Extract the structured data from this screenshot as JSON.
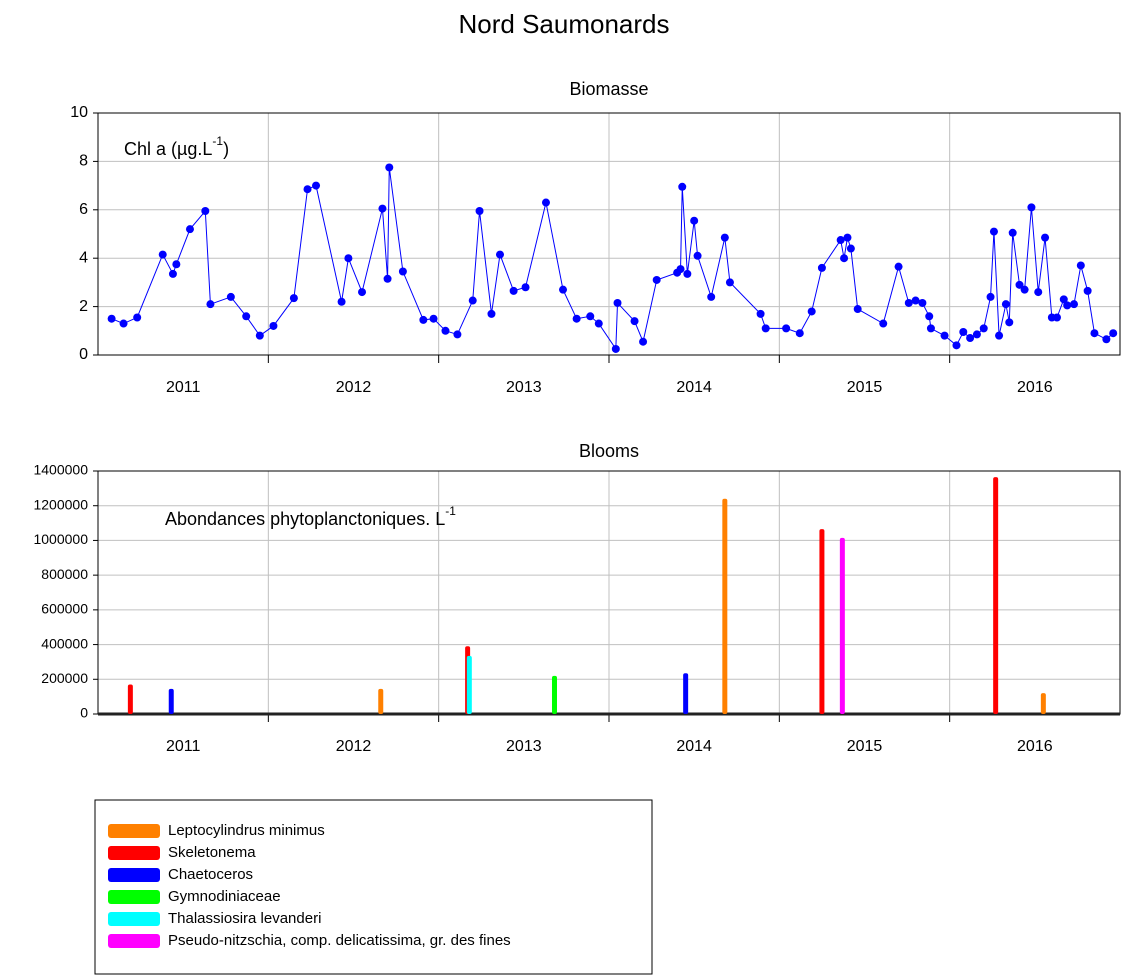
{
  "title": "Nord Saumonards",
  "chart_data": [
    {
      "type": "line",
      "title": "Biomasse",
      "annotation": {
        "text": "Chl a (µg.L",
        "sup": "-1",
        "after": ")"
      },
      "color": "#0000ff",
      "x": [
        2011.08,
        2011.15,
        2011.23,
        2011.38,
        2011.44,
        2011.46,
        2011.54,
        2011.63,
        2011.66,
        2011.78,
        2011.87,
        2011.95,
        2012.03,
        2012.15,
        2012.23,
        2012.28,
        2012.43,
        2012.47,
        2012.55,
        2012.67,
        2012.7,
        2012.71,
        2012.79,
        2012.91,
        2012.97,
        2013.04,
        2013.11,
        2013.2,
        2013.24,
        2013.31,
        2013.36,
        2013.44,
        2013.51,
        2013.63,
        2013.73,
        2013.81,
        2013.89,
        2013.94,
        2014.04,
        2014.05,
        2014.15,
        2014.2,
        2014.28,
        2014.4,
        2014.42,
        2014.43,
        2014.46,
        2014.5,
        2014.52,
        2014.6,
        2014.68,
        2014.71,
        2014.89,
        2014.92,
        2015.04,
        2015.12,
        2015.19,
        2015.25,
        2015.36,
        2015.38,
        2015.4,
        2015.42,
        2015.46,
        2015.61,
        2015.7,
        2015.76,
        2015.8,
        2015.84,
        2015.88,
        2015.89,
        2015.97,
        2016.04,
        2016.08,
        2016.12,
        2016.16,
        2016.2,
        2016.24,
        2016.26,
        2016.29,
        2016.33,
        2016.35,
        2016.37,
        2016.41,
        2016.44,
        2016.48,
        2016.52,
        2016.56,
        2016.6,
        2016.63,
        2016.67,
        2016.69,
        2016.73,
        2016.77,
        2016.81,
        2016.85,
        2016.92,
        2016.96
      ],
      "values": [
        1.5,
        1.3,
        1.55,
        4.15,
        3.35,
        3.75,
        5.2,
        5.95,
        2.1,
        2.4,
        1.6,
        0.8,
        1.2,
        2.35,
        6.85,
        7.0,
        2.2,
        4.0,
        2.6,
        6.05,
        3.15,
        7.75,
        3.45,
        1.45,
        1.5,
        1.0,
        0.85,
        2.25,
        5.95,
        1.7,
        4.15,
        2.65,
        2.8,
        6.3,
        2.7,
        1.5,
        1.6,
        1.3,
        0.25,
        2.15,
        1.4,
        0.55,
        3.1,
        3.4,
        3.55,
        6.95,
        3.35,
        5.55,
        4.1,
        2.4,
        4.85,
        3.0,
        1.7,
        1.1,
        1.1,
        0.9,
        1.8,
        3.6,
        4.75,
        4.0,
        4.85,
        4.4,
        1.9,
        1.3,
        3.65,
        2.15,
        2.25,
        2.15,
        1.6,
        1.1,
        0.8,
        0.4,
        0.95,
        0.7,
        0.85,
        1.1,
        2.4,
        5.1,
        0.8,
        2.1,
        1.35,
        5.05,
        2.9,
        2.7,
        6.1,
        2.6,
        4.85,
        1.55,
        1.55,
        2.3,
        2.05,
        2.1,
        3.7,
        2.65,
        0.9,
        0.65,
        0.9
      ],
      "xlim": [
        2011,
        2017
      ],
      "xticks": [
        {
          "value": 2011.5,
          "label": "2011"
        },
        {
          "value": 2012.5,
          "label": "2012"
        },
        {
          "value": 2013.5,
          "label": "2013"
        },
        {
          "value": 2014.5,
          "label": "2014"
        },
        {
          "value": 2015.5,
          "label": "2015"
        },
        {
          "value": 2016.5,
          "label": "2016"
        }
      ],
      "xgrid": [
        2012,
        2013,
        2014,
        2015,
        2016
      ],
      "ylim": [
        0,
        10
      ],
      "yticks": [
        0,
        2,
        4,
        6,
        8,
        10
      ],
      "grid": true
    },
    {
      "type": "bar",
      "title": "Blooms",
      "annotation": {
        "text": "Abondances phytoplanctoniques. L",
        "sup": "-1",
        "after": ""
      },
      "series": [
        {
          "name": "Leptocylindrus minimus",
          "color": "#ff8000",
          "x": [
            2012.66,
            2014.68,
            2016.55
          ],
          "values": [
            145000,
            1240000,
            120000
          ]
        },
        {
          "name": "Skeletonema",
          "color": "#ff0000",
          "x": [
            2011.19,
            2013.17,
            2015.25,
            2016.27
          ],
          "values": [
            170000,
            390000,
            1065000,
            1365000
          ]
        },
        {
          "name": "Chaetoceros",
          "color": "#0000ff",
          "x": [
            2011.43,
            2014.45
          ],
          "values": [
            145000,
            235000
          ]
        },
        {
          "name": "Gymnodiniaceae",
          "color": "#00ff00",
          "x": [
            2013.68
          ],
          "values": [
            220000
          ]
        },
        {
          "name": "Thalassiosira levanderi",
          "color": "#00ffff",
          "x": [
            2013.18
          ],
          "values": [
            335000
          ]
        },
        {
          "name": "Pseudo-nitzschia, comp. delicatissima, gr. des fines",
          "color": "#ff00ff",
          "x": [
            2015.37
          ],
          "values": [
            1015000
          ]
        }
      ],
      "xlim": [
        2011,
        2017
      ],
      "xticks": [
        {
          "value": 2011.5,
          "label": "2011"
        },
        {
          "value": 2012.5,
          "label": "2012"
        },
        {
          "value": 2013.5,
          "label": "2013"
        },
        {
          "value": 2014.5,
          "label": "2014"
        },
        {
          "value": 2015.5,
          "label": "2015"
        },
        {
          "value": 2016.5,
          "label": "2016"
        }
      ],
      "xgrid": [
        2012,
        2013,
        2014,
        2015,
        2016
      ],
      "ylim": [
        0,
        1400000
      ],
      "yticks": [
        0,
        200000,
        400000,
        600000,
        800000,
        1000000,
        1200000,
        1400000
      ],
      "grid": true
    }
  ]
}
